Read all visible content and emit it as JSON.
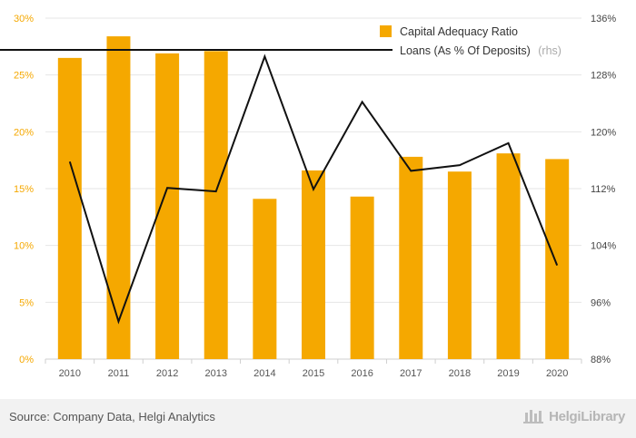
{
  "chart_data": {
    "type": "bar+line",
    "categories": [
      "2010",
      "2011",
      "2012",
      "2013",
      "2014",
      "2015",
      "2016",
      "2017",
      "2018",
      "2019",
      "2020"
    ],
    "series": [
      {
        "name": "Capital Adequacy Ratio",
        "type": "bar",
        "axis": "left",
        "color": "#f5a800",
        "values": [
          26.5,
          28.4,
          26.9,
          27.1,
          14.1,
          16.6,
          14.3,
          17.8,
          16.5,
          18.1,
          17.6
        ]
      },
      {
        "name": "Loans (As % Of Deposits)",
        "note": "(rhs)",
        "type": "line",
        "axis": "right",
        "color": "#111111",
        "values": [
          115.8,
          93.3,
          112.1,
          111.6,
          130.6,
          111.9,
          124.2,
          114.5,
          115.3,
          118.4,
          101.2
        ]
      }
    ],
    "y_left": {
      "min": 0,
      "max": 30,
      "step": 5,
      "ticks": [
        "0%",
        "5%",
        "10%",
        "15%",
        "20%",
        "25%",
        "30%"
      ]
    },
    "y_right": {
      "min": 88,
      "max": 136,
      "step": 8,
      "ticks": [
        "88%",
        "96%",
        "104%",
        "112%",
        "120%",
        "128%",
        "136%"
      ]
    },
    "legend_position": "top-right",
    "grid": true
  },
  "footer": {
    "source": "Source: Company Data, Helgi Analytics",
    "brand": "HelgiLibrary"
  }
}
